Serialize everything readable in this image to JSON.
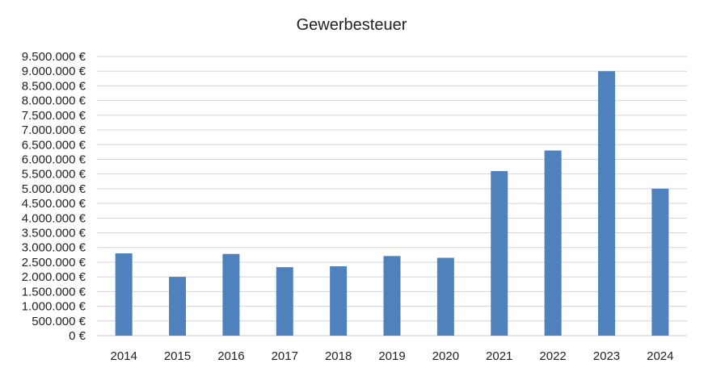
{
  "chart_data": {
    "type": "bar",
    "title": "Gewerbesteuer",
    "xlabel": "",
    "ylabel": "",
    "categories": [
      "2014",
      "2015",
      "2016",
      "2017",
      "2018",
      "2019",
      "2020",
      "2021",
      "2022",
      "2023",
      "2024"
    ],
    "values": [
      2800000,
      2000000,
      2780000,
      2330000,
      2360000,
      2710000,
      2650000,
      5600000,
      6300000,
      9000000,
      5000000
    ],
    "ylim": [
      0,
      9500000
    ],
    "ytick_step": 500000,
    "ytick_labels": [
      "0 €",
      "500.000 €",
      "1.000.000 €",
      "1.500.000 €",
      "2.000.000 €",
      "2.500.000 €",
      "3.000.000 €",
      "3.500.000 €",
      "4.000.000 €",
      "4.500.000 €",
      "5.000.000 €",
      "5.500.000 €",
      "6.000.000 €",
      "6.500.000 €",
      "7.000.000 €",
      "7.500.000 €",
      "8.000.000 €",
      "8.500.000 €",
      "9.000.000 €",
      "9.500.000 €"
    ],
    "grid": true,
    "bar_color": "#4f81bd",
    "legend": "none"
  }
}
